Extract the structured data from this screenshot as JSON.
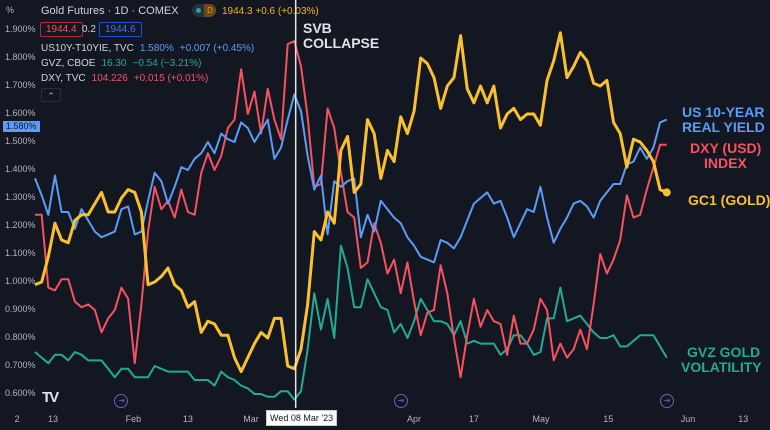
{
  "header": {
    "axis_unit": "%",
    "title": "Gold Futures · 1D · COMEX",
    "badge_letter": "D",
    "quote": "1944.3 +0.6 (+0.03%)",
    "bid": "1944.4",
    "spread": "0.2",
    "ask": "1944.6",
    "legend": [
      {
        "symbol": "US10Y-T10YIE, TVC",
        "value": "1.580%",
        "change": "+0.007 (+0.45%)",
        "color": "#5b9cf6"
      },
      {
        "symbol": "GVZ, CBOE",
        "value": "16.30",
        "change": "−0.54 (−3.21%)",
        "color": "#22ab94"
      },
      {
        "symbol": "DXY, TVC",
        "value": "104.226",
        "change": "+0.015 (+0.01%)",
        "color": "#f7525f"
      }
    ],
    "collapse_icon": "chevron-up-icon"
  },
  "annotation": {
    "line1": "SVB",
    "line2": "COLLAPSE"
  },
  "crosshair_label": "Wed 08 Mar '23",
  "current_price_label": "1.580%",
  "right_labels": {
    "us10_line1": "US 10-YEAR",
    "us10_line2": "REAL YIELD",
    "dxy_line1": "DXY (USD)",
    "dxy_line2": "INDEX",
    "gold": "GC1 (GOLD)",
    "gvz_line1": "GVZ GOLD",
    "gvz_line2": "VOLATILITY"
  },
  "chart_data": {
    "type": "line",
    "title": "Gold Futures · 1D · COMEX",
    "ylabel": "%",
    "ylim": [
      0.6,
      1.9
    ],
    "y_ticks": [
      "1.900%",
      "1.800%",
      "1.700%",
      "1.600%",
      "1.500%",
      "1.400%",
      "1.300%",
      "1.200%",
      "1.100%",
      "1.000%",
      "0.900%",
      "0.800%",
      "0.700%",
      "0.600%"
    ],
    "y_tick_values": [
      1.9,
      1.8,
      1.7,
      1.6,
      1.5,
      1.4,
      1.3,
      1.2,
      1.1,
      1.0,
      0.9,
      0.8,
      0.7,
      0.6
    ],
    "x_ticks": [
      {
        "label": "2",
        "i": -2.7
      },
      {
        "label": "13",
        "i": 2.7
      },
      {
        "label": "Feb",
        "i": 14.8
      },
      {
        "label": "13",
        "i": 23
      },
      {
        "label": "Mar",
        "i": 33.6
      },
      {
        "label": "Apr",
        "i": 57
      },
      {
        "label": "17",
        "i": 66
      },
      {
        "label": "May",
        "i": 76.1
      },
      {
        "label": "15",
        "i": 86.2
      },
      {
        "label": "Jun",
        "i": 98.2
      },
      {
        "label": "13",
        "i": 106.5
      }
    ],
    "xlim": [
      0,
      108
    ],
    "crosshair_index": 39.2,
    "event_indices": [
      13,
      55,
      95
    ],
    "grid": false,
    "series": [
      {
        "name": "US10Y-T10YIE",
        "color": "#5b9cf6",
        "values": [
          1.37,
          1.31,
          1.24,
          1.38,
          1.25,
          1.25,
          1.19,
          1.26,
          1.22,
          1.18,
          1.16,
          1.17,
          1.18,
          1.26,
          1.27,
          1.17,
          1.18,
          1.29,
          1.39,
          1.36,
          1.28,
          1.34,
          1.41,
          1.4,
          1.44,
          1.46,
          1.5,
          1.46,
          1.53,
          1.51,
          1.5,
          1.57,
          1.55,
          1.5,
          1.54,
          1.58,
          1.44,
          1.48,
          1.58,
          1.67,
          1.61,
          1.45,
          1.33,
          1.38,
          1.17,
          1.36,
          1.34,
          1.36,
          1.37,
          1.16,
          1.24,
          1.18,
          1.29,
          1.26,
          1.23,
          1.21,
          1.16,
          1.13,
          1.09,
          1.08,
          1.07,
          1.15,
          1.14,
          1.12,
          1.16,
          1.22,
          1.28,
          1.3,
          1.32,
          1.28,
          1.29,
          1.23,
          1.16,
          1.21,
          1.26,
          1.25,
          1.34,
          1.23,
          1.14,
          1.19,
          1.23,
          1.28,
          1.29,
          1.27,
          1.23,
          1.29,
          1.32,
          1.35,
          1.35,
          1.42,
          1.43,
          1.48,
          1.44,
          1.48,
          1.57,
          1.58
        ]
      },
      {
        "name": "DXY",
        "color": "#f7525f",
        "values": [
          1.24,
          1.24,
          0.98,
          0.97,
          1.01,
          1.01,
          0.93,
          0.91,
          0.92,
          0.9,
          0.82,
          0.87,
          0.9,
          0.98,
          0.94,
          0.71,
          0.92,
          1.18,
          1.34,
          1.26,
          1.29,
          1.23,
          1.33,
          1.25,
          1.24,
          1.39,
          1.46,
          1.4,
          1.45,
          1.55,
          1.58,
          1.76,
          1.6,
          1.68,
          1.53,
          1.69,
          1.58,
          1.51,
          1.85,
          1.86,
          1.77,
          1.59,
          1.34,
          1.35,
          1.62,
          1.55,
          1.39,
          1.25,
          1.23,
          1.05,
          1.07,
          1.21,
          1.14,
          1.03,
          1.08,
          0.96,
          1.07,
          0.93,
          0.81,
          0.89,
          0.9,
          1.06,
          0.96,
          0.8,
          0.66,
          0.81,
          0.94,
          0.84,
          0.9,
          0.86,
          0.85,
          0.74,
          0.88,
          0.78,
          0.78,
          0.83,
          0.94,
          0.9,
          0.72,
          0.78,
          0.73,
          0.76,
          0.83,
          0.76,
          0.92,
          1.1,
          1.03,
          1.08,
          1.15,
          1.31,
          1.23,
          1.24,
          1.33,
          1.41,
          1.49,
          1.49
        ]
      },
      {
        "name": "GC1",
        "color": "#fbc02d",
        "values": [
          0.99,
          1.0,
          1.09,
          1.21,
          1.15,
          1.14,
          1.22,
          1.24,
          1.24,
          1.28,
          1.32,
          1.25,
          1.25,
          1.3,
          1.33,
          1.32,
          1.25,
          0.99,
          1.0,
          1.02,
          1.05,
          0.99,
          0.97,
          0.91,
          0.93,
          0.82,
          0.86,
          0.85,
          0.81,
          0.81,
          0.73,
          0.68,
          0.73,
          0.78,
          0.82,
          0.8,
          0.87,
          0.87,
          0.7,
          0.69,
          0.76,
          0.92,
          1.18,
          1.15,
          1.25,
          1.21,
          1.47,
          1.52,
          1.32,
          1.35,
          1.58,
          1.53,
          1.37,
          1.47,
          1.43,
          1.59,
          1.53,
          1.61,
          1.8,
          1.78,
          1.73,
          1.62,
          1.7,
          1.73,
          1.88,
          1.69,
          1.64,
          1.7,
          1.64,
          1.7,
          1.55,
          1.6,
          1.62,
          1.58,
          1.6,
          1.6,
          1.56,
          1.72,
          1.79,
          1.89,
          1.73,
          1.77,
          1.82,
          1.79,
          1.71,
          1.7,
          1.72,
          1.57,
          1.53,
          1.41,
          1.51,
          1.5,
          1.47,
          1.43,
          1.33,
          1.32
        ]
      },
      {
        "name": "GVZ",
        "color": "#22ab94",
        "values": [
          0.75,
          0.73,
          0.71,
          0.74,
          0.74,
          0.72,
          0.75,
          0.74,
          0.72,
          0.72,
          0.72,
          0.69,
          0.66,
          0.69,
          0.69,
          0.66,
          0.66,
          0.66,
          0.7,
          0.69,
          0.68,
          0.68,
          0.68,
          0.68,
          0.65,
          0.65,
          0.65,
          0.63,
          0.68,
          0.66,
          0.65,
          0.63,
          0.62,
          0.6,
          0.6,
          0.59,
          0.59,
          0.61,
          0.61,
          0.58,
          0.61,
          0.76,
          0.96,
          0.83,
          0.94,
          0.8,
          1.13,
          1.05,
          0.91,
          0.91,
          1.01,
          0.96,
          0.91,
          0.9,
          0.82,
          0.85,
          0.8,
          0.86,
          0.94,
          0.9,
          0.86,
          0.86,
          0.85,
          0.81,
          0.86,
          0.78,
          0.79,
          0.78,
          0.78,
          0.78,
          0.74,
          0.76,
          0.81,
          0.81,
          0.78,
          0.74,
          0.75,
          0.87,
          0.87,
          0.98,
          0.86,
          0.87,
          0.88,
          0.85,
          0.82,
          0.8,
          0.8,
          0.81,
          0.77,
          0.77,
          0.79,
          0.81,
          0.81,
          0.81,
          0.77,
          0.73
        ]
      }
    ]
  }
}
